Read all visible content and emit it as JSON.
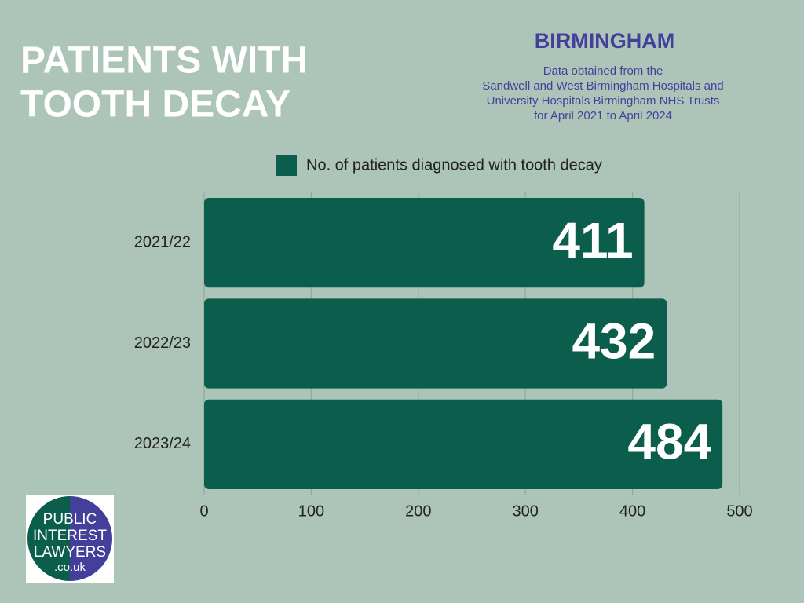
{
  "chart_data": {
    "type": "bar",
    "orientation": "horizontal",
    "title": [
      "PATIENTS WITH",
      "TOOTH DECAY"
    ],
    "subtitle": "BIRMINGHAM",
    "note": [
      "Data obtained from the",
      "Sandwell and West Birmingham Hospitals and",
      "University Hospitals Birmingham NHS Trusts",
      "for April 2021 to April 2024"
    ],
    "categories": [
      "2021/22",
      "2022/23",
      "2023/24"
    ],
    "series": [
      {
        "name": "No. of patients diagnosed with tooth decay",
        "color": "#0b5e4c",
        "values": [
          411,
          432,
          484
        ]
      }
    ],
    "xlim": [
      0,
      500
    ],
    "xticks": [
      0,
      100,
      200,
      300,
      400,
      500
    ],
    "grid": true,
    "legend": "top"
  },
  "logo": {
    "lines": [
      "PUBLIC",
      "INTEREST",
      "LAWYERS",
      ".co.uk"
    ]
  }
}
